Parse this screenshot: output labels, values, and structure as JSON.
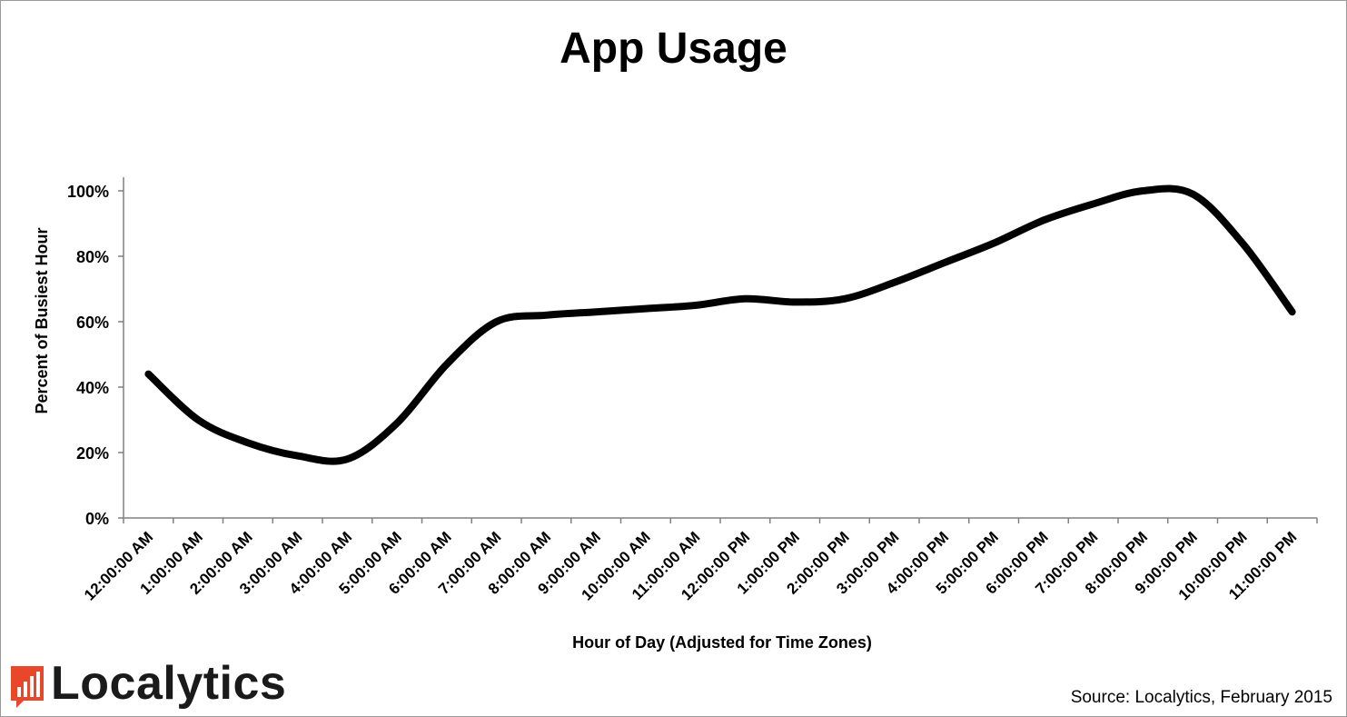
{
  "chart_data": {
    "type": "line",
    "title": "App Usage",
    "xlabel": "Hour of Day (Adjusted for Time Zones)",
    "ylabel": "Percent of Busiest Hour",
    "ylim": [
      0,
      100
    ],
    "yticks": [
      "0%",
      "20%",
      "40%",
      "60%",
      "80%",
      "100%"
    ],
    "grid": false,
    "legend": "none",
    "categories": [
      "12:00:00 AM",
      "1:00:00 AM",
      "2:00:00 AM",
      "3:00:00 AM",
      "4:00:00 AM",
      "5:00:00 AM",
      "6:00:00 AM",
      "7:00:00 AM",
      "8:00:00 AM",
      "9:00:00 AM",
      "10:00:00 AM",
      "11:00:00 AM",
      "12:00:00 PM",
      "1:00:00 PM",
      "2:00:00 PM",
      "3:00:00 PM",
      "4:00:00 PM",
      "5:00:00 PM",
      "6:00:00 PM",
      "7:00:00 PM",
      "8:00:00 PM",
      "9:00:00 PM",
      "10:00:00 PM",
      "11:00:00 PM"
    ],
    "series": [
      {
        "values": [
          44,
          30,
          23,
          19,
          18,
          29,
          47,
          60,
          62,
          63,
          64,
          65,
          67,
          66,
          67,
          72,
          78,
          84,
          91,
          96,
          100,
          99,
          84,
          63
        ],
        "color": "#000000"
      }
    ]
  },
  "footer": {
    "source": "Source: Localytics, February 2015",
    "logo_text": "Localytics",
    "logo_color": "#e8472a"
  }
}
